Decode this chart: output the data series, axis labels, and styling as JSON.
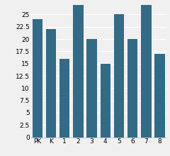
{
  "categories": [
    "PK",
    "K",
    "1",
    "2",
    "3",
    "4",
    "5",
    "6",
    "7",
    "8"
  ],
  "values": [
    24,
    22,
    16,
    27,
    20,
    15,
    25,
    20,
    27,
    17
  ],
  "bar_color": "#336b87",
  "ylim_max": 27,
  "yticks": [
    0,
    2.5,
    5,
    7.5,
    10,
    12.5,
    15,
    17.5,
    20,
    22.5,
    25
  ],
  "background_color": "#f0f0f0",
  "grid_color": "#ffffff",
  "tick_fontsize": 6.5,
  "bar_width": 0.75
}
